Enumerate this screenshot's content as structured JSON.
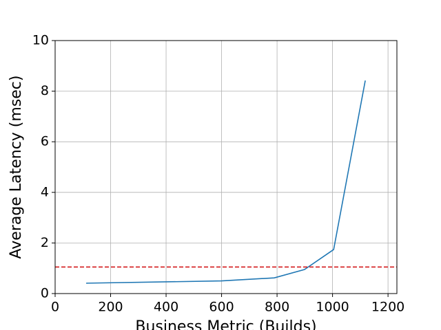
{
  "chart_data": {
    "type": "line",
    "xlabel": "Business Metric (Builds)",
    "ylabel": "Average Latency (msec)",
    "x": [
      112,
      600,
      790,
      899,
      1004,
      1118
    ],
    "series": [
      {
        "color": "#1f77b4",
        "values": [
          0.41,
          0.5,
          0.62,
          0.95,
          1.74,
          8.42
        ]
      }
    ],
    "threshold": 1.05,
    "threshold_color": "#d62728",
    "xlim": [
      0,
      1232
    ],
    "ylim": [
      0,
      10
    ],
    "xticks": [
      0,
      200,
      400,
      600,
      800,
      1000,
      1200
    ],
    "yticks": [
      0,
      2,
      4,
      6,
      8,
      10
    ],
    "grid": true
  }
}
